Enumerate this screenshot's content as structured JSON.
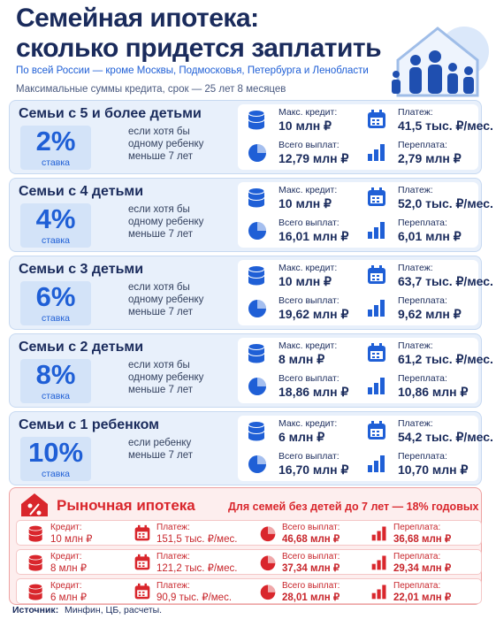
{
  "header": {
    "title_line1": "Семейная ипотека:",
    "title_line2": "сколько придется заплатить",
    "subtitle": "По всей России — кроме Москвы, Подмосковья, Петербурга и Ленобласти",
    "note": "Максимальные суммы кредита, срок — 25 лет 8 месяцев"
  },
  "cards": [
    {
      "title": "Семьи с 5 и более детьми",
      "rate": "2%",
      "rate_label": "ставка",
      "condition": "если хотя бы одному ребенку меньше 7 лет",
      "max_credit_label": "Макс. кредит:",
      "max_credit": "10 млн ₽",
      "payment_label": "Платеж:",
      "payment": "41,5 тыс. ₽/мес.",
      "total_label": "Всего выплат:",
      "total": "12,79 млн ₽",
      "overpay_label": "Переплата:",
      "overpay": "2,79 млн ₽"
    },
    {
      "title": "Семьи с 4 детьми",
      "rate": "4%",
      "rate_label": "ставка",
      "condition": "если хотя бы одному ребенку меньше 7 лет",
      "max_credit_label": "Макс. кредит:",
      "max_credit": "10 млн ₽",
      "payment_label": "Платеж:",
      "payment": "52,0 тыс. ₽/мес.",
      "total_label": "Всего выплат:",
      "total": "16,01 млн ₽",
      "overpay_label": "Переплата:",
      "overpay": "6,01 млн ₽"
    },
    {
      "title": "Семьи с 3 детьми",
      "rate": "6%",
      "rate_label": "ставка",
      "condition": "если хотя бы одному ребенку меньше 7 лет",
      "max_credit_label": "Макс. кредит:",
      "max_credit": "10 млн ₽",
      "payment_label": "Платеж:",
      "payment": "63,7 тыс. ₽/мес.",
      "total_label": "Всего выплат:",
      "total": "19,62 млн ₽",
      "overpay_label": "Переплата:",
      "overpay": "9,62 млн ₽"
    },
    {
      "title": "Семьи с 2 детьми",
      "rate": "8%",
      "rate_label": "ставка",
      "condition": "если хотя бы одному ребенку меньше 7 лет",
      "max_credit_label": "Макс. кредит:",
      "max_credit": "8 млн ₽",
      "payment_label": "Платеж:",
      "payment": "61,2 тыс. ₽/мес.",
      "total_label": "Всего выплат:",
      "total": "18,86 млн ₽",
      "overpay_label": "Переплата:",
      "overpay": "10,86 млн ₽"
    },
    {
      "title": "Семьи с 1 ребенком",
      "rate": "10%",
      "rate_label": "ставка",
      "condition": "если ребенку меньше 7 лет",
      "max_credit_label": "Макс. кредит:",
      "max_credit": "6 млн ₽",
      "payment_label": "Платеж:",
      "payment": "54,2 тыс. ₽/мес.",
      "total_label": "Всего выплат:",
      "total": "16,70 млн ₽",
      "overpay_label": "Переплата:",
      "overpay": "10,70 млн ₽"
    }
  ],
  "market": {
    "title": "Рыночная ипотека",
    "subtitle": "Для семей без детей до 7 лет — 18% годовых",
    "rows": [
      {
        "credit_label": "Кредит:",
        "credit": "10 млн ₽",
        "payment_label": "Платеж:",
        "payment": "151,5 тыс. ₽/мес.",
        "total_label": "Всего выплат:",
        "total": "46,68 млн ₽",
        "overpay_label": "Переплата:",
        "overpay": "36,68 млн ₽"
      },
      {
        "credit_label": "Кредит:",
        "credit": "8 млн ₽",
        "payment_label": "Платеж:",
        "payment": "121,2 тыс. ₽/мес.",
        "total_label": "Всего выплат:",
        "total": "37,34 млн ₽",
        "overpay_label": "Переплата:",
        "overpay": "29,34 млн ₽"
      },
      {
        "credit_label": "Кредит:",
        "credit": "6 млн ₽",
        "payment_label": "Платеж:",
        "payment": "90,9 тыс. ₽/мес.",
        "total_label": "Всего выплат:",
        "total": "28,01 млн ₽",
        "overpay_label": "Переплата:",
        "overpay": "22,01 млн ₽"
      }
    ]
  },
  "footer": {
    "source_label": "Источник:",
    "source": "Минфин, ЦБ, расчеты."
  }
}
